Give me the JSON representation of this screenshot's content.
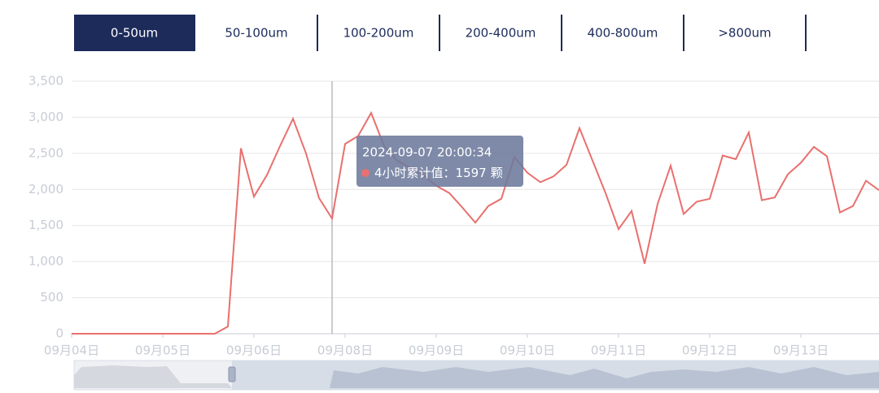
{
  "tabs": [
    "0-50um",
    "50-100um",
    "100-200um",
    "200-400um",
    "400-800um",
    ">800um"
  ],
  "chart_data": {
    "type": "line",
    "categories": [
      "09月04日",
      null,
      null,
      null,
      null,
      null,
      null,
      "09月05日",
      null,
      null,
      null,
      null,
      null,
      null,
      "09月06日",
      null,
      null,
      null,
      null,
      null,
      null,
      "09月08日",
      null,
      null,
      null,
      null,
      null,
      null,
      "09月09日",
      null,
      null,
      null,
      null,
      null,
      null,
      "09月10日",
      null,
      null,
      null,
      null,
      null,
      null,
      "09月11日",
      null,
      null,
      null,
      null,
      null,
      null,
      "09月12日",
      null,
      null,
      null,
      null,
      null,
      null,
      "09月13日",
      null,
      null,
      null,
      null,
      null,
      null
    ],
    "values": [
      0,
      0,
      0,
      0,
      0,
      0,
      0,
      0,
      0,
      0,
      0,
      0,
      100,
      2570,
      1900,
      2200,
      2600,
      2980,
      2500,
      1880,
      1597,
      2630,
      2740,
      3060,
      2600,
      2400,
      2300,
      2200,
      2050,
      1950,
      1750,
      1540,
      1770,
      1870,
      2450,
      2230,
      2100,
      2180,
      2340,
      2850,
      2400,
      1950,
      1450,
      1700,
      970,
      1800,
      2330,
      1660,
      1830,
      1870,
      2470,
      2420,
      2790,
      1850,
      1890,
      2210,
      2370,
      2590,
      2460,
      1680,
      1770,
      2120,
      1990
    ],
    "color": "#e8706e",
    "ylim": [
      0,
      3500
    ],
    "yticks": [
      0,
      500,
      {
        "value": 1000,
        "label": "1,000"
      },
      {
        "value": 1500,
        "label": "1,500"
      },
      {
        "value": 2000,
        "label": "2,000"
      },
      {
        "value": 2500,
        "label": "2,500"
      },
      {
        "value": 3000,
        "label": "3,000"
      },
      {
        "value": 3500,
        "label": "3,500"
      }
    ],
    "grid": true,
    "tooltip": {
      "title": "2024-09-07 20:00:34",
      "label": "4小时累计值：",
      "unit": "颗"
    }
  }
}
